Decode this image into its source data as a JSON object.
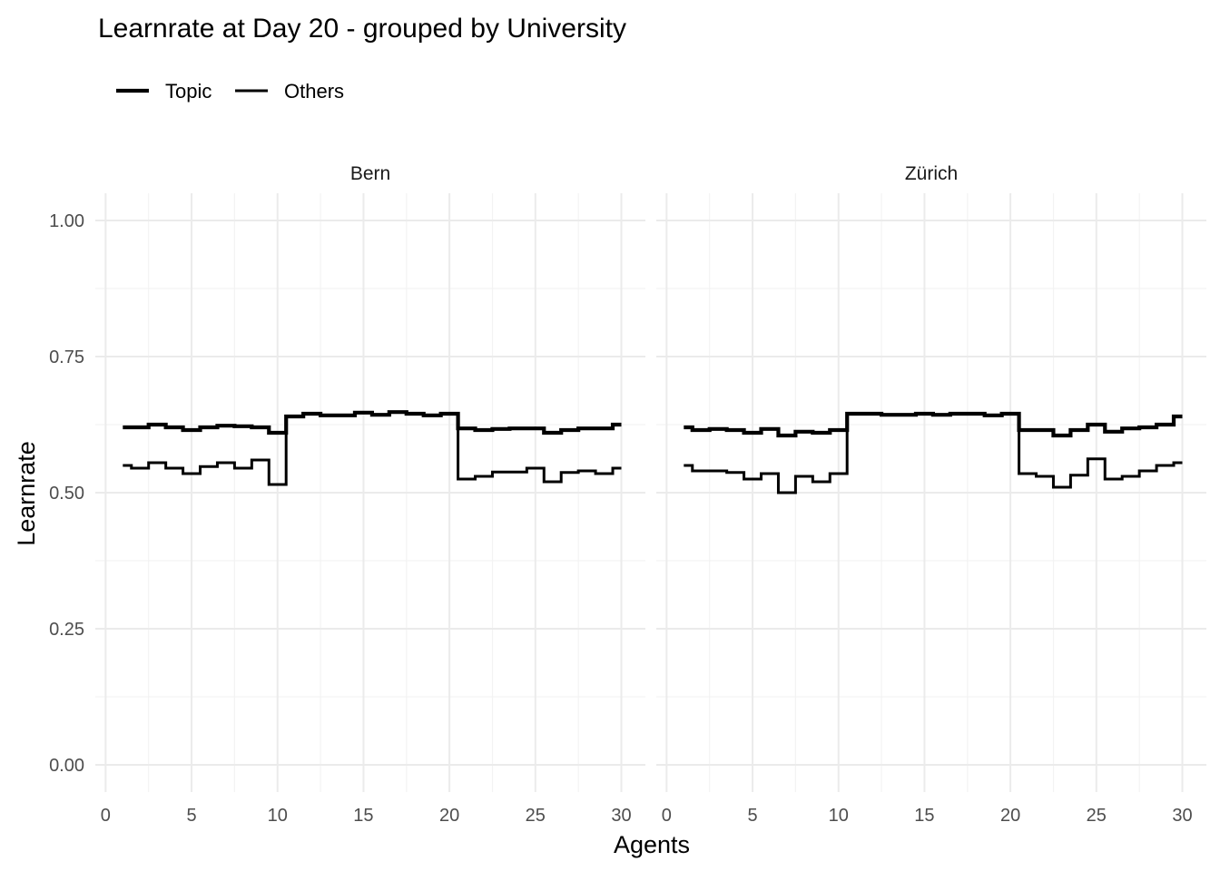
{
  "chart_data": {
    "type": "line",
    "step": true,
    "title": "Learnrate at Day 20 - grouped by University",
    "xlabel": "Agents",
    "ylabel": "Learnrate",
    "xlim": [
      0,
      30
    ],
    "ylim": [
      0,
      1
    ],
    "x_ticks": [
      0,
      5,
      10,
      15,
      20,
      25,
      30
    ],
    "y_ticks": [
      0.0,
      0.25,
      0.5,
      0.75,
      1.0
    ],
    "y_tick_labels": [
      "0.00",
      "0.25",
      "0.50",
      "0.75",
      "1.00"
    ],
    "grid": true,
    "legend": {
      "position": "top-left",
      "entries": [
        {
          "name": "Topic",
          "line": "thick"
        },
        {
          "name": "Others",
          "line": "thin"
        }
      ]
    },
    "x": [
      1,
      2,
      3,
      4,
      5,
      6,
      7,
      8,
      9,
      10,
      11,
      12,
      13,
      14,
      15,
      16,
      17,
      18,
      19,
      20,
      21,
      22,
      23,
      24,
      25,
      26,
      27,
      28,
      29,
      30
    ],
    "panels": [
      {
        "name": "Bern",
        "series": [
          {
            "name": "Topic",
            "values": [
              0.62,
              0.62,
              0.625,
              0.62,
              0.615,
              0.62,
              0.623,
              0.622,
              0.62,
              0.61,
              0.64,
              0.645,
              0.642,
              0.642,
              0.647,
              0.643,
              0.648,
              0.645,
              0.642,
              0.645,
              0.618,
              0.615,
              0.617,
              0.618,
              0.618,
              0.61,
              0.615,
              0.618,
              0.618,
              0.625
            ]
          },
          {
            "name": "Others",
            "values": [
              0.55,
              0.545,
              0.555,
              0.545,
              0.535,
              0.548,
              0.555,
              0.545,
              0.56,
              0.515,
              0.64,
              0.645,
              0.642,
              0.642,
              0.647,
              0.643,
              0.648,
              0.645,
              0.642,
              0.645,
              0.525,
              0.53,
              0.538,
              0.538,
              0.545,
              0.52,
              0.537,
              0.54,
              0.535,
              0.545
            ]
          }
        ]
      },
      {
        "name": "Zürich",
        "series": [
          {
            "name": "Topic",
            "values": [
              0.62,
              0.615,
              0.617,
              0.615,
              0.61,
              0.617,
              0.605,
              0.612,
              0.61,
              0.615,
              0.645,
              0.645,
              0.643,
              0.643,
              0.645,
              0.643,
              0.645,
              0.645,
              0.642,
              0.645,
              0.615,
              0.615,
              0.605,
              0.615,
              0.625,
              0.612,
              0.618,
              0.62,
              0.625,
              0.64
            ]
          },
          {
            "name": "Others",
            "values": [
              0.55,
              0.54,
              0.54,
              0.537,
              0.525,
              0.535,
              0.5,
              0.53,
              0.52,
              0.535,
              0.645,
              0.645,
              0.643,
              0.643,
              0.645,
              0.643,
              0.645,
              0.645,
              0.642,
              0.645,
              0.535,
              0.53,
              0.51,
              0.532,
              0.562,
              0.525,
              0.53,
              0.54,
              0.55,
              0.555
            ]
          }
        ]
      }
    ]
  }
}
